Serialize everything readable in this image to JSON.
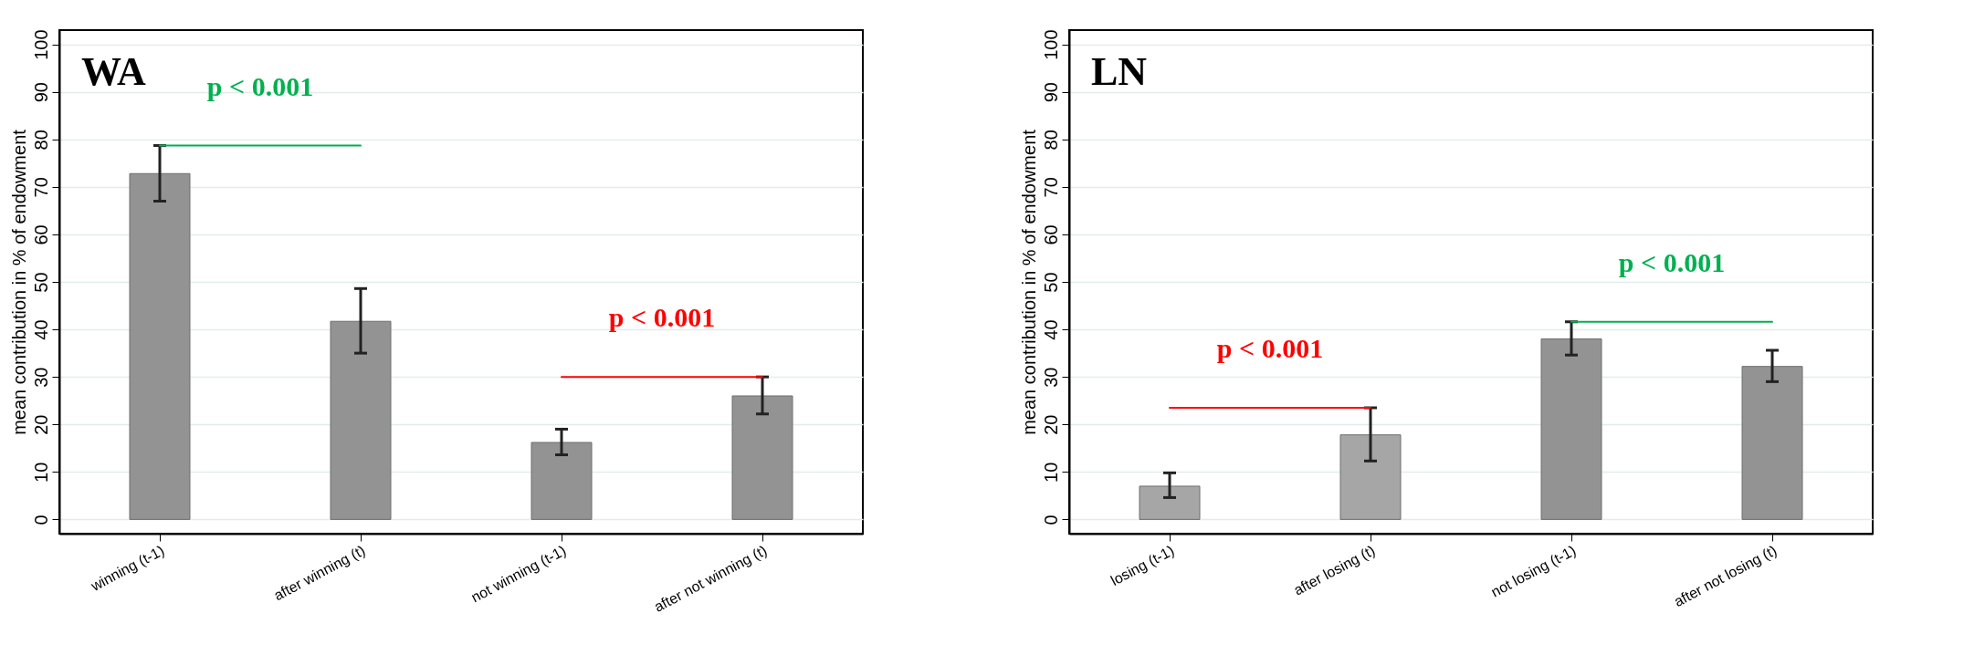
{
  "chart_data": [
    {
      "type": "bar",
      "title": "WA",
      "ylabel": "mean contribution in % of endowment",
      "categories": [
        "winning (t-1)",
        "after winning (t)",
        "not winning (t-1)",
        "after not winning (t)"
      ],
      "values": [
        72.8,
        41.7,
        16.2,
        26
      ],
      "errors": [
        [
          67,
          78.7
        ],
        [
          35,
          48.6
        ],
        [
          13.6,
          19
        ],
        [
          22.2,
          30
        ]
      ],
      "color": "#939393",
      "ylim": [
        -3,
        103
      ],
      "yticks": [
        0,
        10,
        20,
        30,
        40,
        50,
        60,
        70,
        80,
        90,
        100
      ],
      "grid": "y",
      "annotations": [
        "p < 0.001",
        "p < 0.001"
      ]
    },
    {
      "type": "bar",
      "title": "LN",
      "ylabel": "mean contribution in % of endowment",
      "categories": [
        "losing (t-1)",
        "after losing (t)",
        "not losing (t-1)",
        "after not losing (t)"
      ],
      "values": [
        7,
        17.8,
        38,
        32.2
      ],
      "errors": [
        [
          4.6,
          9.8
        ],
        [
          12.3,
          23.5
        ],
        [
          34.6,
          41.6
        ],
        [
          29,
          35.6
        ]
      ],
      "colors": [
        "#a6a6a6",
        "#a6a6a6",
        "#939393",
        "#939393"
      ],
      "ylim": [
        -3,
        103
      ],
      "yticks": [
        0,
        10,
        20,
        30,
        40,
        50,
        60,
        70,
        80,
        90,
        100
      ],
      "grid": "y",
      "annotations": [
        "p < 0.001",
        "p < 0.001"
      ]
    }
  ]
}
